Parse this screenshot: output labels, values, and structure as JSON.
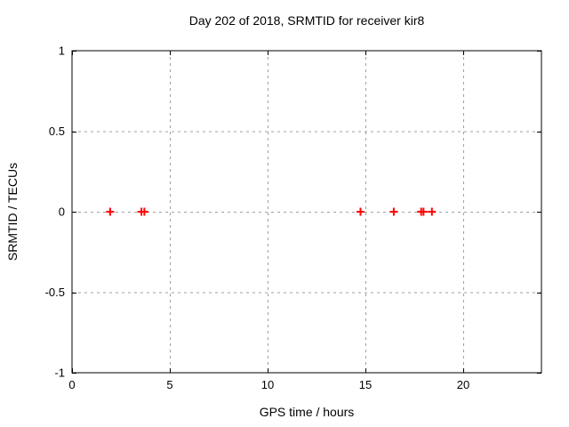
{
  "chart_data": {
    "type": "scatter",
    "title": "Day 202 of 2018, SRMTID for receiver kir8",
    "xlabel": "GPS time / hours",
    "ylabel": "SRMTID / TECUs",
    "xlim": [
      0,
      24
    ],
    "ylim": [
      -1,
      1
    ],
    "xticks": [
      0,
      5,
      10,
      15,
      20
    ],
    "yticks": [
      -1,
      -0.5,
      0,
      0.5,
      1
    ],
    "grid": true,
    "grid_style": "dashed",
    "legend_position": "none",
    "marker": "plus",
    "colors": {
      "marker": "#ff0000",
      "grid": "#a0a0a0",
      "border": "#000000",
      "text": "#000000",
      "background": "#ffffff"
    },
    "series": [
      {
        "name": "SRMTID",
        "points": [
          {
            "x": 1.95,
            "y": 0
          },
          {
            "x": 3.55,
            "y": 0
          },
          {
            "x": 3.7,
            "y": 0
          },
          {
            "x": 14.75,
            "y": 0
          },
          {
            "x": 16.45,
            "y": 0
          },
          {
            "x": 17.85,
            "y": 0
          },
          {
            "x": 17.97,
            "y": 0
          },
          {
            "x": 18.4,
            "y": 0
          }
        ]
      }
    ]
  }
}
